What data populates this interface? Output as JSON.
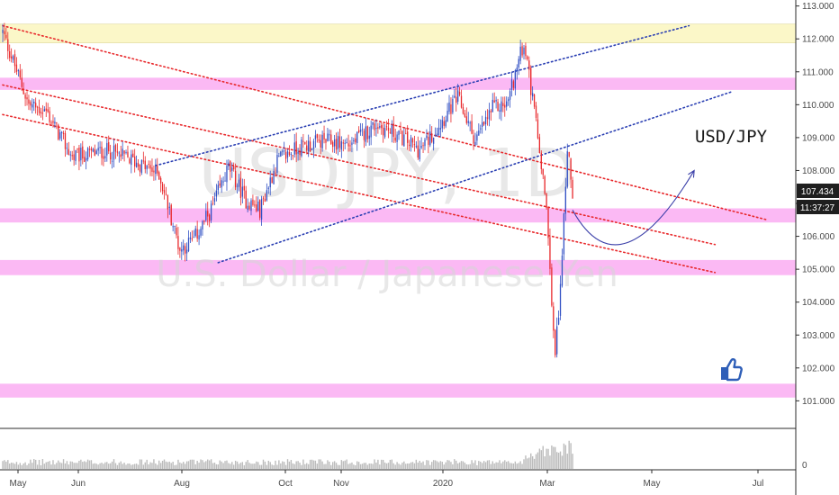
{
  "chart_data": {
    "type": "candlestick",
    "symbol_label": "USD/JPY",
    "watermark": {
      "symbol": "USDJPY, 1D",
      "description": "U.S. Dollar / Japanese Yen"
    },
    "ylim": [
      100.6,
      113.1
    ],
    "y_ticks": [
      "113.000",
      "112.000",
      "111.000",
      "110.000",
      "109.000",
      "108.000",
      "107.000",
      "106.000",
      "105.000",
      "104.000",
      "103.000",
      "102.000",
      "101.000"
    ],
    "y_tick_values": [
      113,
      112,
      111,
      110,
      109,
      108,
      107,
      106,
      105,
      104,
      103,
      102,
      101
    ],
    "x_labels": [
      "May",
      "Jun",
      "Aug",
      "Oct",
      "Nov",
      "2020",
      "Mar",
      "May",
      "Jul"
    ],
    "last_price": "107.434",
    "countdown": "11:37:27",
    "volume_axis_label": "0",
    "colors": {
      "up": "#3150c4",
      "down": "#e8282b",
      "pink_zone": "#fbb9f4",
      "yellow_zone": "#fbf7c8",
      "red_trend": "#e8282b",
      "blue_trend": "#2a3fb3",
      "forecast_arrow": "#3a3fa8",
      "price_tag": "#1f1f1f",
      "volume": "#bcbcbc"
    },
    "zones": [
      {
        "kind": "yellow",
        "y_top": 112.45,
        "y_bottom": 111.88
      },
      {
        "kind": "pink",
        "y_top": 110.82,
        "y_bottom": 110.45
      },
      {
        "kind": "pink",
        "y_top": 106.85,
        "y_bottom": 106.42
      },
      {
        "kind": "pink",
        "y_top": 105.28,
        "y_bottom": 104.82
      },
      {
        "kind": "pink",
        "y_top": 101.52,
        "y_bottom": 101.1
      }
    ],
    "anchors": [
      [
        0,
        112.2
      ],
      [
        15,
        110.0
      ],
      [
        25,
        109.8
      ],
      [
        40,
        108.4
      ],
      [
        60,
        108.6
      ],
      [
        75,
        108.3
      ],
      [
        90,
        107.9
      ],
      [
        102,
        105.6
      ],
      [
        110,
        105.9
      ],
      [
        120,
        106.8
      ],
      [
        130,
        108.1
      ],
      [
        140,
        107.1
      ],
      [
        148,
        106.8
      ],
      [
        158,
        108.3
      ],
      [
        170,
        108.7
      ],
      [
        185,
        108.9
      ],
      [
        200,
        108.8
      ],
      [
        215,
        109.4
      ],
      [
        230,
        109.0
      ],
      [
        240,
        108.6
      ],
      [
        250,
        109.3
      ],
      [
        262,
        110.2
      ],
      [
        272,
        108.9
      ],
      [
        282,
        109.9
      ],
      [
        290,
        110.0
      ],
      [
        300,
        111.9
      ],
      [
        305,
        110.2
      ],
      [
        312,
        107.5
      ],
      [
        316,
        104.0
      ],
      [
        318,
        102.3
      ],
      [
        321,
        104.5
      ],
      [
        325,
        108.6
      ],
      [
        328,
        107.4
      ]
    ],
    "zone_note": "horizontal support/resistance zones in price units",
    "forecast": {
      "start": [
        328,
        106.8
      ],
      "control": [
        355,
        104.2
      ],
      "end": [
        398,
        108.0
      ]
    },
    "trend_lines": {
      "red_upper": [
        [
          0,
          112.4
        ],
        [
          440,
          106.5
        ]
      ],
      "red_mid": [
        [
          0,
          110.6
        ],
        [
          410,
          105.75
        ]
      ],
      "red_lower": [
        [
          0,
          109.7
        ],
        [
          410,
          104.9
        ]
      ],
      "blue_upper": [
        [
          88,
          108.15
        ],
        [
          395,
          112.4
        ]
      ],
      "blue_lower": [
        [
          124,
          105.2
        ],
        [
          420,
          110.4
        ]
      ]
    }
  }
}
